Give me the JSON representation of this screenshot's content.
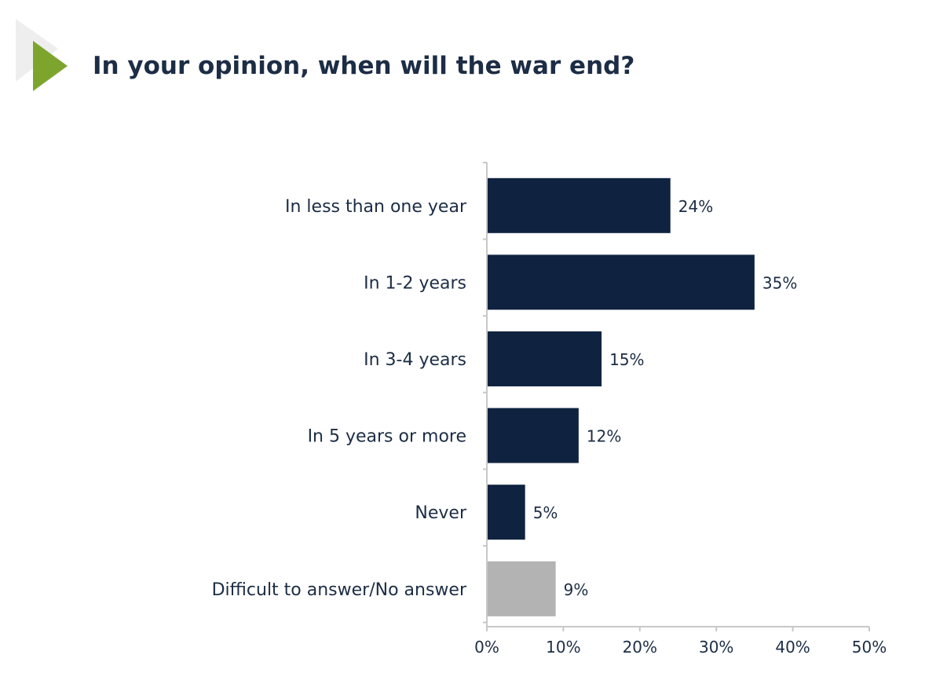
{
  "chart_data": {
    "type": "bar",
    "orientation": "horizontal",
    "title": "In your opinion, when will the war end?",
    "categories": [
      "In less than one year",
      "In 1-2 years",
      "In 3-4 years",
      "In 5 years or more",
      "Never",
      "Difficult to answer/No answer"
    ],
    "values": [
      24,
      35,
      15,
      12,
      5,
      9
    ],
    "value_labels": [
      "24%",
      "35%",
      "15%",
      "12%",
      "5%",
      "9%"
    ],
    "colors": [
      "#0f2340",
      "#0f2340",
      "#0f2340",
      "#0f2340",
      "#0f2340",
      "#b3b3b3"
    ],
    "xlim": [
      0,
      50
    ],
    "xticks": [
      0,
      10,
      20,
      30,
      40,
      50
    ],
    "xtick_labels": [
      "0%",
      "10%",
      "20%",
      "30%",
      "40%",
      "50%"
    ],
    "xlabel": "",
    "ylabel": "",
    "grid": false,
    "legend": "none"
  },
  "colors": {
    "accent": "#7da52e",
    "title": "#1c2d45"
  }
}
